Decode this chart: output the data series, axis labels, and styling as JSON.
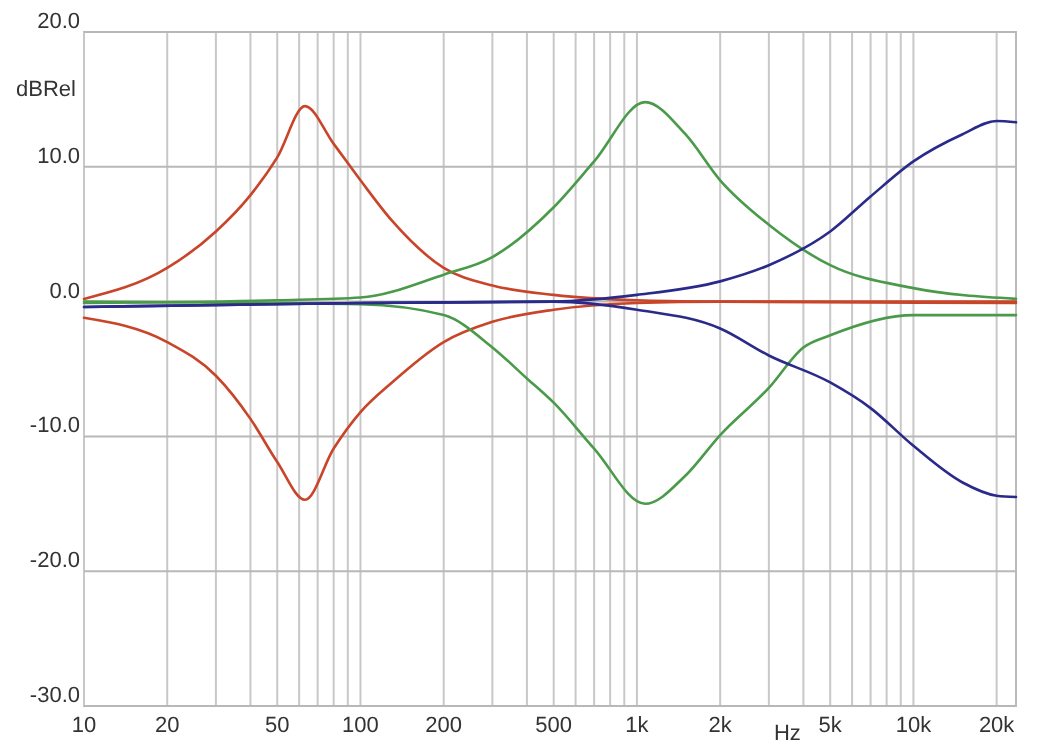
{
  "chart_data": {
    "type": "line",
    "ylabel": "dBRel",
    "xlabel": "Hz",
    "log": "x",
    "grid": true,
    "line_style": "solid",
    "marker": "none",
    "xlim": [
      10,
      23500
    ],
    "ylim": [
      -30,
      20
    ],
    "xticks": [
      10,
      20,
      {
        "value": 30,
        "label": null
      },
      {
        "value": 40,
        "label": null
      },
      50,
      {
        "value": 60,
        "label": null
      },
      {
        "value": 70,
        "label": null
      },
      {
        "value": 80,
        "label": null
      },
      {
        "value": 90,
        "label": null
      },
      100,
      200,
      {
        "value": 300,
        "label": null
      },
      {
        "value": 400,
        "label": null
      },
      500,
      {
        "value": 600,
        "label": null
      },
      {
        "value": 700,
        "label": null
      },
      {
        "value": 800,
        "label": null
      },
      {
        "value": 900,
        "label": null
      },
      {
        "value": 1000,
        "label": "1k"
      },
      {
        "value": 2000,
        "label": "2k"
      },
      {
        "value": 3000,
        "label": null
      },
      {
        "value": 4000,
        "label": null
      },
      {
        "value": 5000,
        "label": "5k"
      },
      {
        "value": 6000,
        "label": null
      },
      {
        "value": 7000,
        "label": null
      },
      {
        "value": 8000,
        "label": null
      },
      {
        "value": 9000,
        "label": null
      },
      {
        "value": 10000,
        "label": "10k"
      },
      {
        "value": 20000,
        "label": "20k"
      }
    ],
    "yticks": [
      {
        "value": -30,
        "label": "-30.0"
      },
      {
        "value": -20,
        "label": "-20.0"
      },
      {
        "value": -10,
        "label": "-10.0"
      },
      {
        "value": 0,
        "label": "0.0"
      },
      {
        "value": 10,
        "label": "10.0"
      },
      {
        "value": 20,
        "label": "20.0"
      }
    ],
    "series": [
      {
        "color": "#c8452a",
        "x": [
          10,
          20,
          30,
          40,
          50,
          63,
          80,
          100,
          130,
          200,
          300,
          500,
          1000,
          2000,
          23500
        ],
        "values": [
          0.2,
          2.5,
          5.2,
          7.9,
          10.7,
          14.5,
          11.7,
          9,
          6,
          2.5,
          1.2,
          0.5,
          0.1,
          0,
          -0.1
        ]
      },
      {
        "color": "#c8452a",
        "x": [
          10,
          20,
          30,
          40,
          50,
          63,
          80,
          100,
          130,
          200,
          300,
          500,
          1000,
          2000,
          23500
        ],
        "values": [
          -1.2,
          -3,
          -5.5,
          -8.7,
          -11.9,
          -14.7,
          -10.9,
          -8.2,
          -6,
          -3,
          -1.5,
          -0.6,
          -0.1,
          0,
          0
        ]
      },
      {
        "color": "#4a9a4a",
        "x": [
          10,
          50,
          100,
          200,
          300,
          500,
          700,
          1070,
          1500,
          2000,
          3000,
          5000,
          10000,
          23500
        ],
        "values": [
          -0.1,
          0.1,
          0.3,
          2,
          3.3,
          7,
          10.4,
          14.8,
          12.4,
          9,
          5.7,
          2.7,
          1,
          0.2
        ]
      },
      {
        "color": "#4a9a4a",
        "x": [
          10,
          100,
          200,
          300,
          400,
          500,
          700,
          1070,
          1500,
          2000,
          3000,
          4000,
          5000,
          10000,
          23500
        ],
        "values": [
          0,
          -0.2,
          -1,
          -3.4,
          -5.7,
          -7.5,
          -10.9,
          -15,
          -12.9,
          -9.9,
          -6.4,
          -3.4,
          -2.5,
          -1,
          -1
        ]
      },
      {
        "color": "#2a2a8a",
        "x": [
          10,
          100,
          500,
          1000,
          2000,
          3000,
          5000,
          7000,
          10000,
          15000,
          20000,
          23500
        ],
        "values": [
          -0.4,
          -0.1,
          0,
          0.5,
          1.5,
          2.7,
          5.2,
          7.8,
          10.4,
          12.4,
          13.4,
          13.3
        ]
      },
      {
        "color": "#2a2a8a",
        "x": [
          10,
          100,
          500,
          1000,
          2000,
          3000,
          5000,
          7000,
          10000,
          15000,
          20000,
          23500
        ],
        "values": [
          -0.4,
          -0.1,
          0,
          -0.6,
          -2,
          -4,
          -6,
          -7.9,
          -10.7,
          -13.4,
          -14.4,
          -14.5
        ]
      }
    ]
  }
}
